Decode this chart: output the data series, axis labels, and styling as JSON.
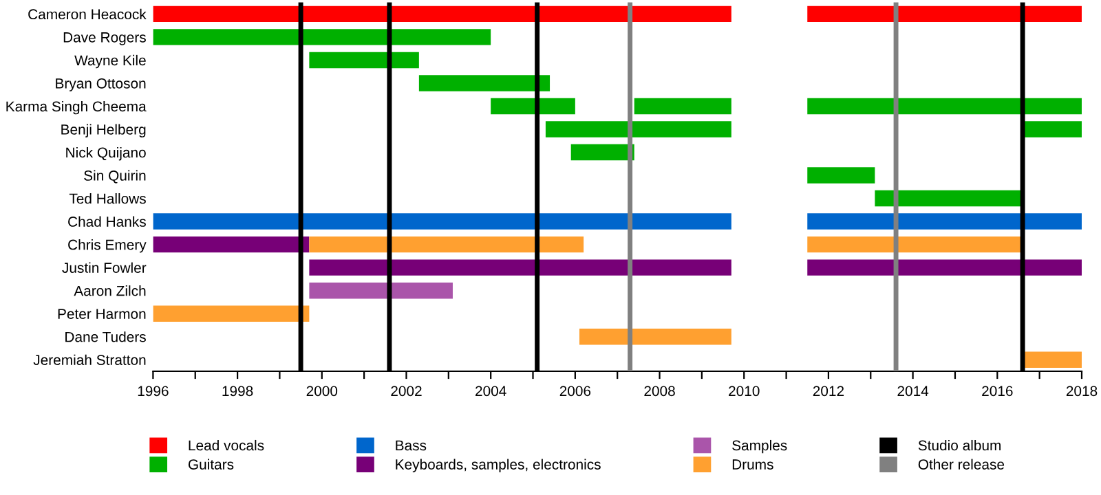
{
  "chart_data": {
    "type": "bar",
    "orientation": "horizontal",
    "categories": [
      "Cameron Heacock",
      "Dave Rogers",
      "Wayne Kile",
      "Bryan Ottoson",
      "Karma Singh Cheema",
      "Benji Helberg",
      "Nick Quijano",
      "Sin Quirin",
      "Ted Hallows",
      "Chad Hanks",
      "Chris Emery",
      "Justin Fowler",
      "Aaron Zilch",
      "Peter Harmon",
      "Dane Tuders",
      "Jeremiah Stratton"
    ],
    "series": [
      {
        "name": "Lead vocals",
        "color": "#ff0000",
        "base": [
          1996,
          null,
          null,
          null,
          null,
          null,
          null,
          null,
          null,
          null,
          null,
          null,
          null,
          null,
          null,
          null
        ],
        "values": [
          13.7,
          null,
          null,
          null,
          null,
          null,
          null,
          null,
          null,
          null,
          null,
          null,
          null,
          null,
          null,
          null
        ]
      },
      {
        "color": "#ff0000",
        "base": [
          2011.5,
          null,
          null,
          null,
          null,
          null,
          null,
          null,
          null,
          null,
          null,
          null,
          null,
          null,
          null,
          null
        ],
        "values": [
          6.5,
          null,
          null,
          null,
          null,
          null,
          null,
          null,
          null,
          null,
          null,
          null,
          null,
          null,
          null,
          null
        ]
      },
      {
        "name": "Guitars",
        "color": "#00b000",
        "base": [
          null,
          1996,
          1999.7,
          2002.3,
          2004.0,
          2005.3,
          2005.9,
          2011.5,
          2013.1,
          null,
          null,
          null,
          null,
          null,
          null,
          null
        ],
        "values": [
          null,
          8.0,
          2.6,
          3.1,
          2.0,
          4.4,
          1.5,
          1.6,
          3.5,
          null,
          null,
          null,
          null,
          null,
          null,
          null
        ]
      },
      {
        "color": "#00b000",
        "base": [
          null,
          null,
          null,
          null,
          2007.4,
          2016.6,
          null,
          null,
          null,
          null,
          null,
          null,
          null,
          null,
          null,
          null
        ],
        "values": [
          null,
          null,
          null,
          null,
          2.3,
          1.4,
          null,
          null,
          null,
          null,
          null,
          null,
          null,
          null,
          null,
          null
        ]
      },
      {
        "color": "#00b000",
        "base": [
          null,
          null,
          null,
          null,
          2011.5,
          null,
          null,
          null,
          null,
          null,
          null,
          null,
          null,
          null,
          null,
          null
        ],
        "values": [
          null,
          null,
          null,
          null,
          6.5,
          null,
          null,
          null,
          null,
          null,
          null,
          null,
          null,
          null,
          null,
          null
        ]
      },
      {
        "name": "Bass",
        "color": "#0066cc",
        "base": [
          null,
          null,
          null,
          null,
          null,
          null,
          null,
          null,
          null,
          1996,
          null,
          null,
          null,
          null,
          null,
          null
        ],
        "values": [
          null,
          null,
          null,
          null,
          null,
          null,
          null,
          null,
          null,
          13.7,
          null,
          null,
          null,
          null,
          null,
          null
        ]
      },
      {
        "color": "#0066cc",
        "base": [
          null,
          null,
          null,
          null,
          null,
          null,
          null,
          null,
          null,
          2011.5,
          null,
          null,
          null,
          null,
          null,
          null
        ],
        "values": [
          null,
          null,
          null,
          null,
          null,
          null,
          null,
          null,
          null,
          6.5,
          null,
          null,
          null,
          null,
          null,
          null
        ]
      },
      {
        "name": "Keyboards, samples, electronics",
        "color": "#770077",
        "base": [
          null,
          null,
          null,
          null,
          null,
          null,
          null,
          null,
          null,
          null,
          1996,
          1999.7,
          null,
          null,
          null,
          null
        ],
        "values": [
          null,
          null,
          null,
          null,
          null,
          null,
          null,
          null,
          null,
          null,
          3.7,
          10.0,
          null,
          null,
          null,
          null
        ]
      },
      {
        "color": "#770077",
        "base": [
          null,
          null,
          null,
          null,
          null,
          null,
          null,
          null,
          null,
          null,
          null,
          2011.5,
          null,
          null,
          null,
          null
        ],
        "values": [
          null,
          null,
          null,
          null,
          null,
          null,
          null,
          null,
          null,
          null,
          null,
          6.5,
          null,
          null,
          null,
          null
        ]
      },
      {
        "name": "Samples",
        "color": "#aa55aa",
        "base": [
          null,
          null,
          null,
          null,
          null,
          null,
          null,
          null,
          null,
          null,
          null,
          null,
          1999.7,
          null,
          null,
          null
        ],
        "values": [
          null,
          null,
          null,
          null,
          null,
          null,
          null,
          null,
          null,
          null,
          null,
          null,
          3.4,
          null,
          null,
          null
        ]
      },
      {
        "name": "Drums",
        "color": "#ffa030",
        "base": [
          null,
          null,
          null,
          null,
          null,
          null,
          null,
          null,
          null,
          null,
          1999.7,
          null,
          null,
          1996,
          2006.1,
          2016.6
        ],
        "values": [
          null,
          null,
          null,
          null,
          null,
          null,
          null,
          null,
          null,
          null,
          6.5,
          null,
          null,
          3.7,
          3.6,
          1.4
        ]
      },
      {
        "color": "#ffa030",
        "base": [
          null,
          null,
          null,
          null,
          null,
          null,
          null,
          null,
          null,
          null,
          2011.5,
          null,
          null,
          null,
          null,
          null
        ],
        "values": [
          null,
          null,
          null,
          null,
          null,
          null,
          null,
          null,
          null,
          null,
          5.1,
          null,
          null,
          null,
          null,
          null
        ]
      }
    ],
    "ref_lines": [
      {
        "axis": "x",
        "value": 1999.5,
        "label": "Studio album",
        "color": "#000000"
      },
      {
        "axis": "x",
        "value": 2001.6,
        "color": "#000000"
      },
      {
        "axis": "x",
        "value": 2005.1,
        "color": "#000000"
      },
      {
        "axis": "x",
        "value": 2016.6,
        "color": "#000000"
      },
      {
        "axis": "x",
        "value": 2007.3,
        "label": "Other release",
        "color": "#808080"
      },
      {
        "axis": "x",
        "value": 2013.6,
        "color": "#808080"
      }
    ],
    "xlim": [
      1996,
      2018
    ],
    "xticks": [
      1996,
      {
        "value": 1997,
        "label": null
      },
      1998,
      {
        "value": 1999,
        "label": null
      },
      2000,
      {
        "value": 2001,
        "label": null
      },
      2002,
      {
        "value": 2003,
        "label": null
      },
      2004,
      {
        "value": 2005,
        "label": null
      },
      2006,
      {
        "value": 2007,
        "label": null
      },
      2008,
      {
        "value": 2009,
        "label": null
      },
      2010,
      {
        "value": 2011,
        "label": null
      },
      2012,
      {
        "value": 2013,
        "label": null
      },
      2014,
      {
        "value": 2015,
        "label": null
      },
      2016,
      {
        "value": 2017,
        "label": null
      },
      2018
    ],
    "grid": false,
    "legend": "bottom"
  }
}
